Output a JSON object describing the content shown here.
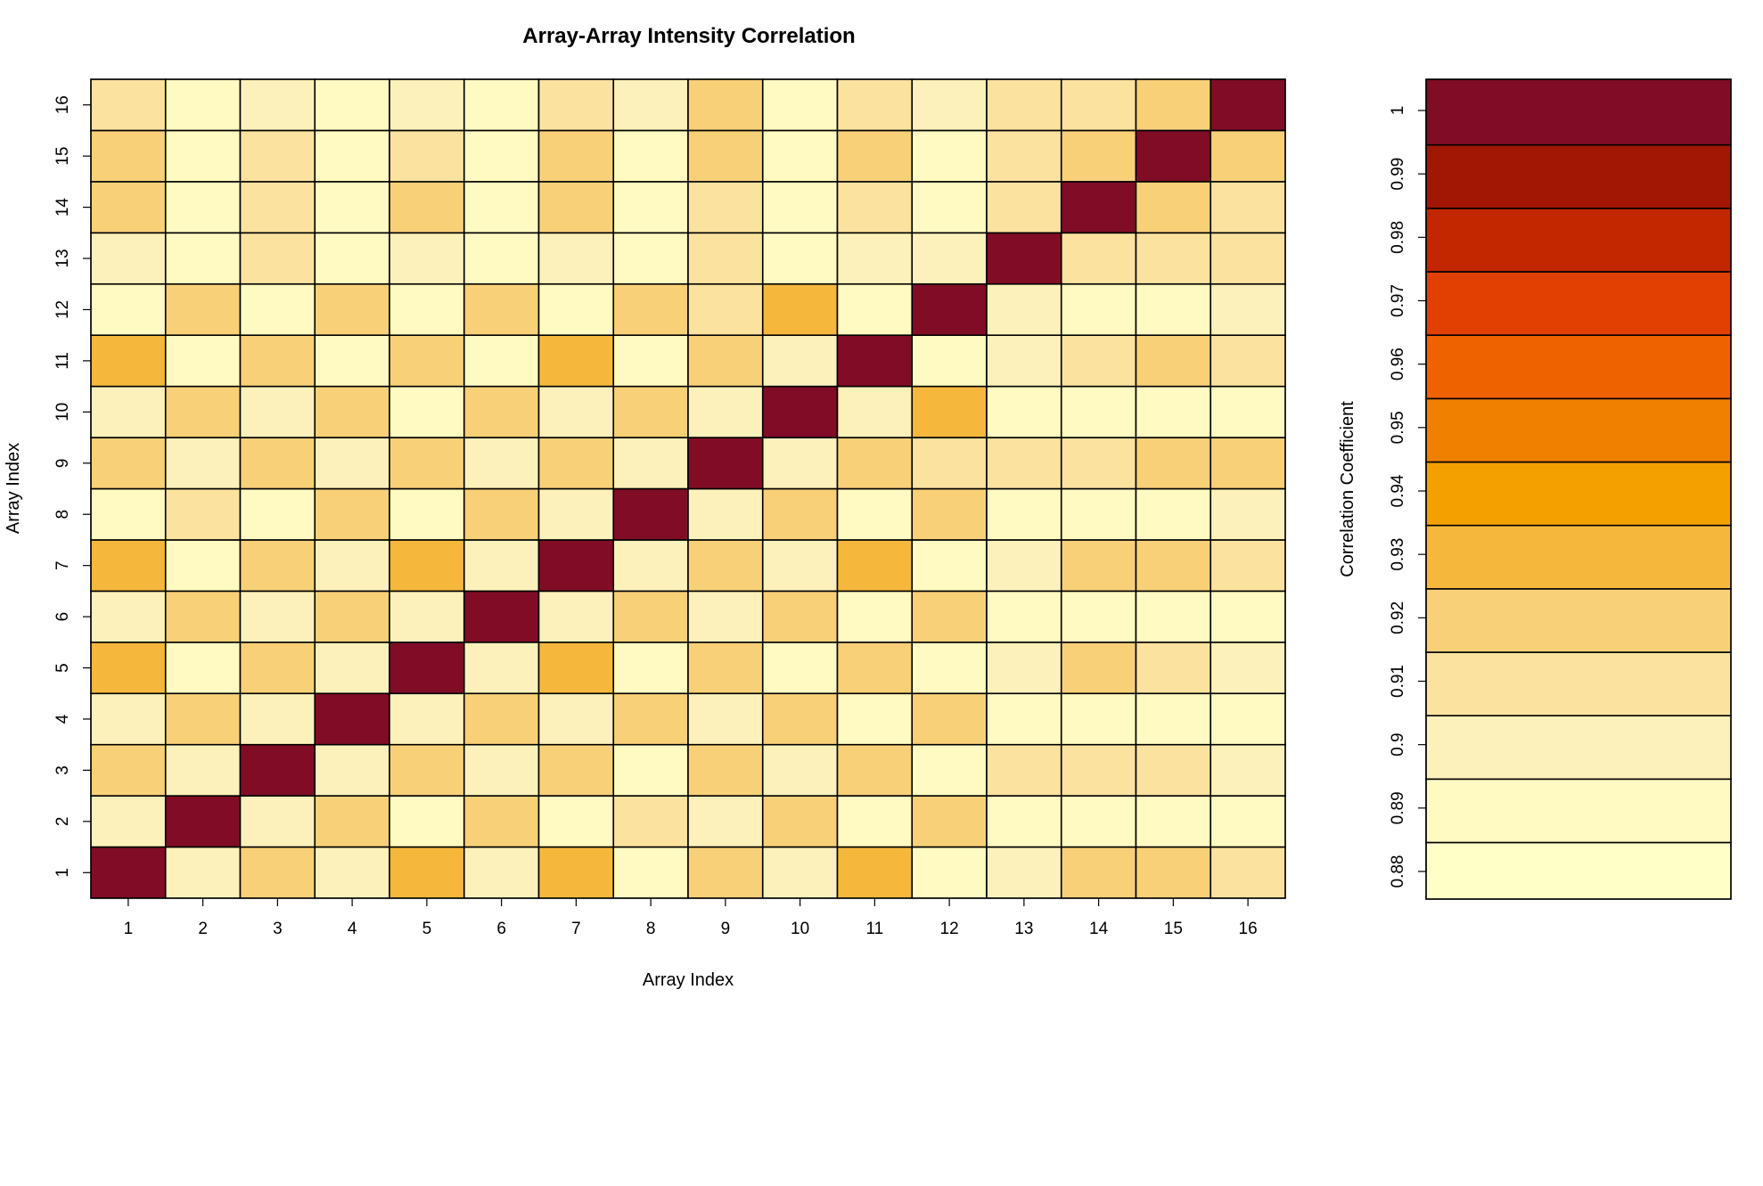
{
  "chart_data": {
    "type": "heatmap",
    "title": "Array-Array Intensity Correlation",
    "xlabel": "Array Index",
    "ylabel": "Array Index",
    "x_categories": [
      "1",
      "2",
      "3",
      "4",
      "5",
      "6",
      "7",
      "8",
      "9",
      "10",
      "11",
      "12",
      "13",
      "14",
      "15",
      "16"
    ],
    "y_categories": [
      "1",
      "2",
      "3",
      "4",
      "5",
      "6",
      "7",
      "8",
      "9",
      "10",
      "11",
      "12",
      "13",
      "14",
      "15",
      "16"
    ],
    "value_note": "matrix rows listed from Array Index 1 (bottom row) to 16 (top row); values in columns 1..16",
    "matrix": [
      [
        1.0,
        0.9,
        0.92,
        0.9,
        0.93,
        0.9,
        0.93,
        0.89,
        0.92,
        0.9,
        0.93,
        0.89,
        0.9,
        0.92,
        0.92,
        0.91
      ],
      [
        0.9,
        1.0,
        0.9,
        0.92,
        0.89,
        0.92,
        0.89,
        0.91,
        0.9,
        0.92,
        0.89,
        0.92,
        0.89,
        0.89,
        0.89,
        0.89
      ],
      [
        0.92,
        0.9,
        1.0,
        0.9,
        0.92,
        0.9,
        0.92,
        0.89,
        0.92,
        0.9,
        0.92,
        0.89,
        0.91,
        0.91,
        0.91,
        0.9
      ],
      [
        0.9,
        0.92,
        0.9,
        1.0,
        0.9,
        0.92,
        0.9,
        0.92,
        0.9,
        0.92,
        0.89,
        0.92,
        0.89,
        0.89,
        0.89,
        0.89
      ],
      [
        0.93,
        0.89,
        0.92,
        0.9,
        1.0,
        0.9,
        0.93,
        0.89,
        0.92,
        0.89,
        0.92,
        0.89,
        0.9,
        0.92,
        0.91,
        0.9
      ],
      [
        0.9,
        0.92,
        0.9,
        0.92,
        0.9,
        1.0,
        0.9,
        0.92,
        0.9,
        0.92,
        0.89,
        0.92,
        0.89,
        0.89,
        0.89,
        0.89
      ],
      [
        0.93,
        0.89,
        0.92,
        0.9,
        0.93,
        0.9,
        1.0,
        0.9,
        0.92,
        0.9,
        0.93,
        0.89,
        0.9,
        0.92,
        0.92,
        0.91
      ],
      [
        0.89,
        0.91,
        0.89,
        0.92,
        0.89,
        0.92,
        0.9,
        1.0,
        0.9,
        0.92,
        0.89,
        0.92,
        0.89,
        0.89,
        0.89,
        0.9
      ],
      [
        0.92,
        0.9,
        0.92,
        0.9,
        0.92,
        0.9,
        0.92,
        0.9,
        1.0,
        0.9,
        0.92,
        0.91,
        0.91,
        0.91,
        0.92,
        0.92
      ],
      [
        0.9,
        0.92,
        0.9,
        0.92,
        0.89,
        0.92,
        0.9,
        0.92,
        0.9,
        1.0,
        0.9,
        0.93,
        0.89,
        0.89,
        0.89,
        0.89
      ],
      [
        0.93,
        0.89,
        0.92,
        0.89,
        0.92,
        0.89,
        0.93,
        0.89,
        0.92,
        0.9,
        1.0,
        0.89,
        0.9,
        0.91,
        0.92,
        0.91
      ],
      [
        0.89,
        0.92,
        0.89,
        0.92,
        0.89,
        0.92,
        0.89,
        0.92,
        0.91,
        0.93,
        0.89,
        1.0,
        0.9,
        0.89,
        0.89,
        0.9
      ],
      [
        0.9,
        0.89,
        0.91,
        0.89,
        0.9,
        0.89,
        0.9,
        0.89,
        0.91,
        0.89,
        0.9,
        0.9,
        1.0,
        0.91,
        0.91,
        0.91
      ],
      [
        0.92,
        0.89,
        0.91,
        0.89,
        0.92,
        0.89,
        0.92,
        0.89,
        0.91,
        0.89,
        0.91,
        0.89,
        0.91,
        1.0,
        0.92,
        0.91
      ],
      [
        0.92,
        0.89,
        0.91,
        0.89,
        0.91,
        0.89,
        0.92,
        0.89,
        0.92,
        0.89,
        0.92,
        0.89,
        0.91,
        0.92,
        1.0,
        0.92
      ],
      [
        0.91,
        0.89,
        0.9,
        0.89,
        0.9,
        0.89,
        0.91,
        0.9,
        0.92,
        0.89,
        0.91,
        0.9,
        0.91,
        0.91,
        0.92,
        1.0
      ]
    ],
    "colorbar": {
      "label": "Correlation Coefficient",
      "ticks": [
        "0.88",
        "0.89",
        "0.9",
        "0.91",
        "0.92",
        "0.93",
        "0.94",
        "0.95",
        "0.96",
        "0.97",
        "0.98",
        "0.99",
        "1"
      ],
      "range": [
        0.88,
        1.0
      ],
      "colors": [
        "#FFFFC8",
        "#FFFAC1",
        "#FCF1BA",
        "#FBE29E",
        "#F8D077",
        "#F6B83C",
        "#F4A000",
        "#F08100",
        "#EE6200",
        "#E14100",
        "#C22700",
        "#A11704",
        "#800D25"
      ]
    },
    "grid": false
  }
}
